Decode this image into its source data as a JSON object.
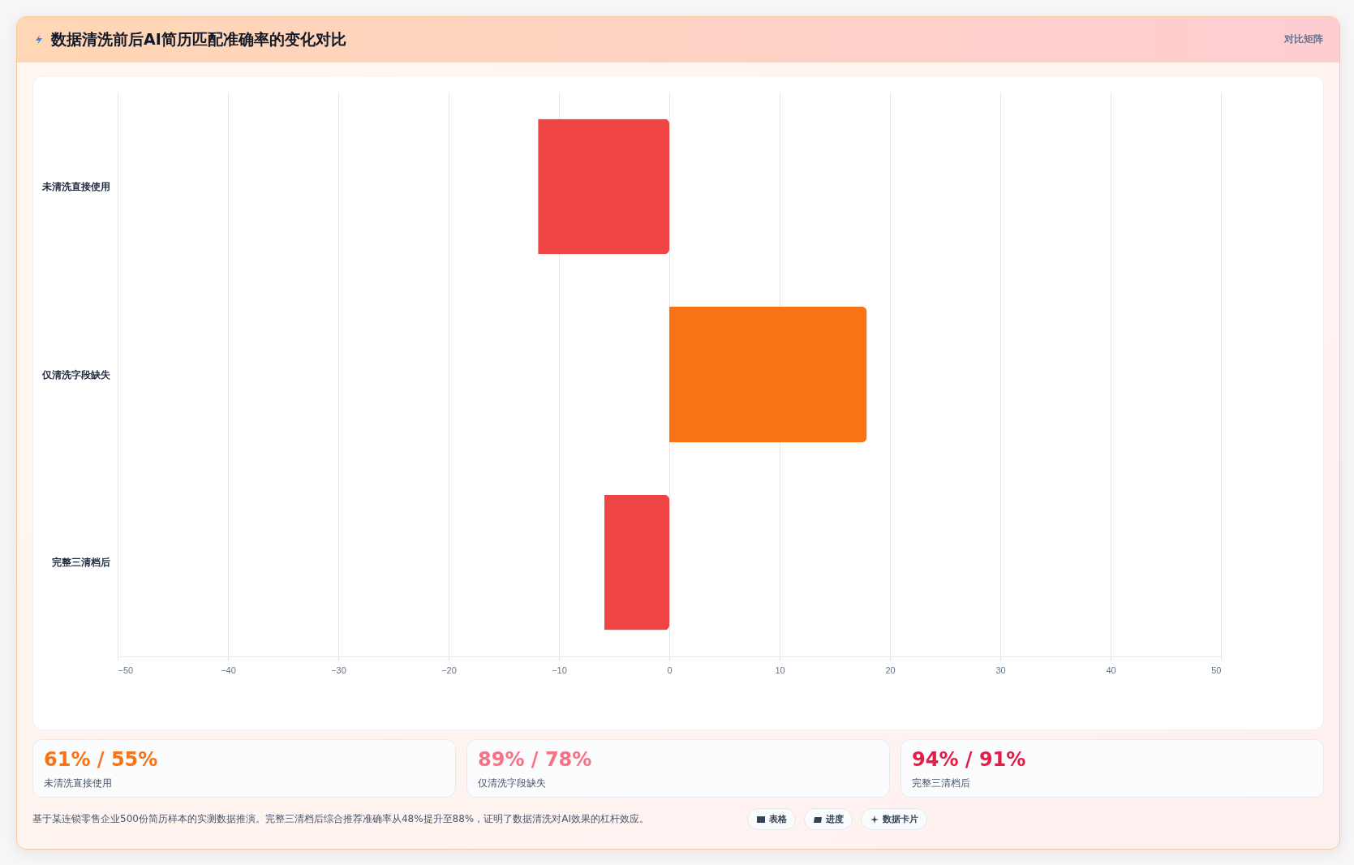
{
  "chart_data": {
    "type": "bar",
    "orientation": "horizontal",
    "title": "数据清洗前后AI简历匹配准确率的变化对比",
    "categories": [
      "未清洗直接使用",
      "仅清洗字段缺失",
      "完整三清档后"
    ],
    "values": [
      -11.9,
      17.9,
      -5.9
    ],
    "colors": [
      "#ef4444",
      "#f97316",
      "#ef4444"
    ],
    "xlim": [
      -50,
      50
    ],
    "xticks": [
      -50,
      -40,
      -30,
      -20,
      -10,
      0,
      10,
      20,
      30,
      40,
      50
    ],
    "grid": "x",
    "annotations": [
      "对比矩阵",
      "61% / 55%",
      "未清洗直接使用",
      "89% / 78%",
      "仅清洗字段缺失",
      "94% / 91%",
      "完整三清档后",
      "基于某连锁零售企业500份简历样本的实测数据推演。完整三清档后综合推荐准确率从48%提升至88%，证明了数据清洗对AI效果的杠杆效应。",
      "表格",
      "进度",
      "数据卡片"
    ]
  }
}
